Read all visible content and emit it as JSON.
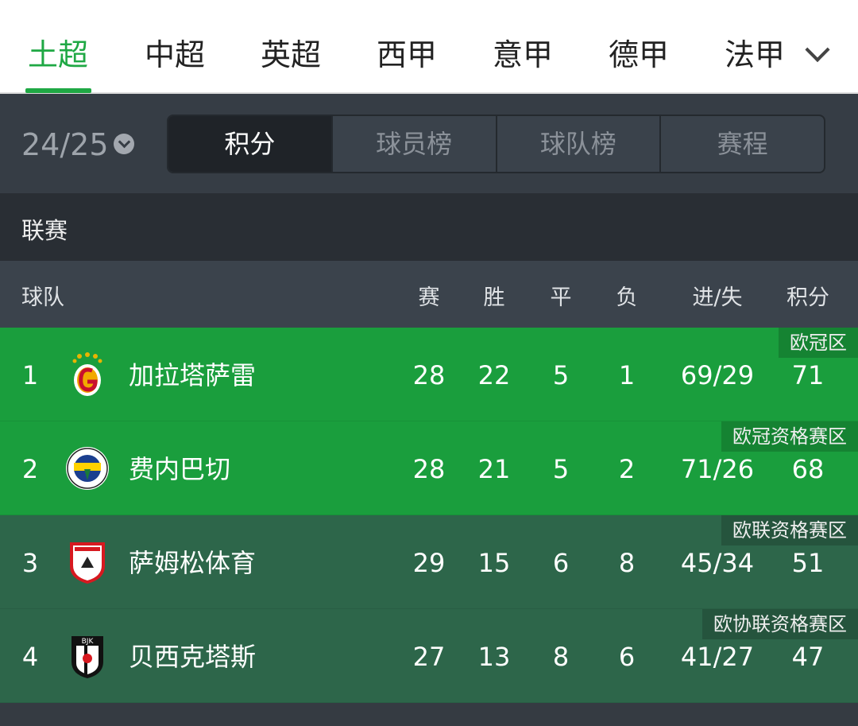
{
  "nav": {
    "tabs": [
      "土超",
      "中超",
      "英超",
      "西甲",
      "意甲",
      "德甲",
      "法甲"
    ],
    "active": 0,
    "more_icon": "chevron-down-icon",
    "accent": "#1fa844"
  },
  "season": {
    "value": "24/25",
    "icon": "chevron-down-circle-icon"
  },
  "segments": [
    "积分",
    "球员榜",
    "球队榜",
    "赛程"
  ],
  "section": "联赛",
  "headers": {
    "team": "球队",
    "played": "赛",
    "won": "胜",
    "draw": "平",
    "lost": "负",
    "goals": "进/失",
    "points": "积分"
  },
  "rows": [
    {
      "rank": "1",
      "name": "加拉塔萨雷",
      "played": "28",
      "won": "22",
      "draw": "5",
      "lost": "1",
      "goals": "69/29",
      "points": "71",
      "zone": "欧冠区",
      "bg": "#1a9e3d",
      "logo": "galatasaray"
    },
    {
      "rank": "2",
      "name": "费内巴切",
      "played": "28",
      "won": "21",
      "draw": "5",
      "lost": "2",
      "goals": "71/26",
      "points": "68",
      "zone": "欧冠资格赛区",
      "bg": "#1a9e3d",
      "logo": "fenerbahce"
    },
    {
      "rank": "3",
      "name": "萨姆松体育",
      "played": "29",
      "won": "15",
      "draw": "6",
      "lost": "8",
      "goals": "45/34",
      "points": "51",
      "zone": "欧联资格赛区",
      "bg": "#2d664a",
      "logo": "samsunspor"
    },
    {
      "rank": "4",
      "name": "贝西克塔斯",
      "played": "27",
      "won": "13",
      "draw": "8",
      "lost": "6",
      "goals": "41/27",
      "points": "47",
      "zone": "欧协联资格赛区",
      "bg": "#2d664a",
      "logo": "besiktas"
    }
  ]
}
